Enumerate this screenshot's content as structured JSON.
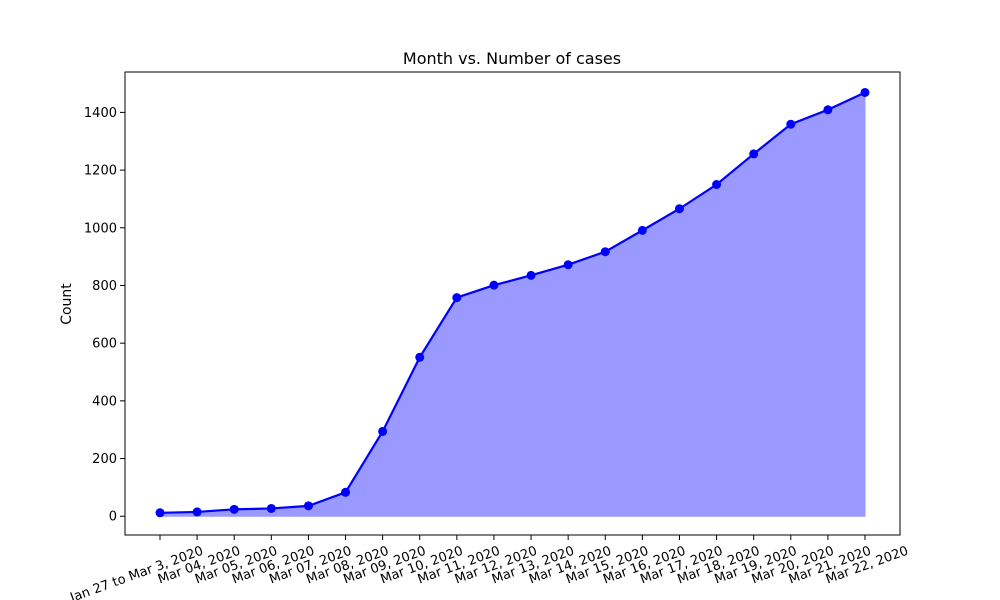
{
  "chart_data": {
    "type": "area",
    "title": "Month vs. Number of cases",
    "xlabel": "",
    "ylabel": "Count",
    "categories": [
      "Jan 27 to Mar 3, 2020",
      "Mar 04, 2020",
      "Mar 05, 2020",
      "Mar 06, 2020",
      "Mar 07, 2020",
      "Mar 08, 2020",
      "Mar 09, 2020",
      "Mar 10, 2020",
      "Mar 11, 2020",
      "Mar 12, 2020",
      "Mar 13, 2020",
      "Mar 14, 2020",
      "Mar 15, 2020",
      "Mar 16, 2020",
      "Mar 17, 2020",
      "Mar 18, 2020",
      "Mar 19, 2020",
      "Mar 20, 2020",
      "Mar 21, 2020",
      "Mar 22, 2020"
    ],
    "series": [
      {
        "values": [
          12,
          15,
          24,
          27,
          36,
          83,
          294,
          551,
          758,
          801,
          835,
          872,
          917,
          991,
          1066,
          1150,
          1256,
          1359,
          1409,
          1469
        ]
      }
    ],
    "ylim": [
      -65,
      1540
    ],
    "yticks": [
      0,
      200,
      400,
      600,
      800,
      1000,
      1200,
      1400
    ],
    "grid": false,
    "line_color": "#0000ff",
    "fill_color": "#9999ff"
  }
}
